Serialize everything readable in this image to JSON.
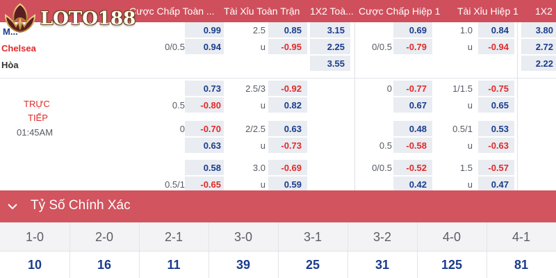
{
  "brand": {
    "name": "LOTO188",
    "colors": {
      "header": "#cf4f5c",
      "score_bar": "#d1545f",
      "odd_blue": "#1a3c8c",
      "odd_red": "#e02a2a"
    }
  },
  "header": {
    "cols": [
      "Cược Chấp Toàn ...",
      "Tài Xỉu Toàn Trận",
      "1X2 Toà...",
      "Cược Chấp Hiệp 1",
      "Tài Xỉu Hiệp 1",
      "1X2"
    ]
  },
  "match": {
    "home": "M...",
    "away": "Chelsea",
    "draw": "Hòa",
    "status": [
      "TRỰC",
      "TIẾP"
    ],
    "time": "01:45AM"
  },
  "rows": [
    {
      "ft_hdp": {
        "line_top": "",
        "top": "0.99",
        "line_bot": "0/0.5",
        "bot": "0.94"
      },
      "ft_ou": {
        "line_top": "2.5",
        "top": "0.85",
        "line_bot": "u",
        "bot": "-0.95"
      },
      "ft_1x2": [
        "3.15",
        "2.25",
        "3.55"
      ],
      "h1_hdp": {
        "line_top": "",
        "top": "0.69",
        "line_bot": "0/0.5",
        "bot": "-0.79"
      },
      "h1_ou": {
        "line_top": "1.0",
        "top": "0.84",
        "line_bot": "u",
        "bot": "-0.94"
      },
      "h1_1x2": [
        "3.80",
        "2.72",
        "2.22"
      ]
    },
    {
      "ft_hdp": {
        "line_top": "",
        "top": "0.73",
        "line_bot": "0.5",
        "bot": "-0.80"
      },
      "ft_ou": {
        "line_top": "2.5/3",
        "top": "-0.92",
        "line_bot": "u",
        "bot": "0.82"
      },
      "h1_hdp": {
        "line_top": "0",
        "top": "-0.77",
        "line_bot": "",
        "bot": "0.67"
      },
      "h1_ou": {
        "line_top": "1/1.5",
        "top": "-0.75",
        "line_bot": "u",
        "bot": "0.65"
      }
    },
    {
      "ft_hdp": {
        "line_top": "0",
        "top": "-0.70",
        "line_bot": "",
        "bot": "0.63"
      },
      "ft_ou": {
        "line_top": "2/2.5",
        "top": "0.63",
        "line_bot": "u",
        "bot": "-0.73"
      },
      "h1_hdp": {
        "line_top": "",
        "top": "0.48",
        "line_bot": "0.5",
        "bot": "-0.58"
      },
      "h1_ou": {
        "line_top": "0.5/1",
        "top": "0.53",
        "line_bot": "u",
        "bot": "-0.63"
      }
    },
    {
      "ft_hdp": {
        "line_top": "",
        "top": "0.58",
        "line_bot": "0.5/1",
        "bot": "-0.65"
      },
      "ft_ou": {
        "line_top": "3.0",
        "top": "-0.69",
        "line_bot": "u",
        "bot": "0.59"
      },
      "h1_hdp": {
        "line_top": "0/0.5",
        "top": "-0.52",
        "line_bot": "",
        "bot": "0.42"
      },
      "h1_ou": {
        "line_top": "1.5",
        "top": "-0.57",
        "line_bot": "u",
        "bot": "0.47"
      }
    }
  ],
  "correct_score": {
    "title": "Tỷ Số Chính Xác",
    "scores": [
      "1-0",
      "2-0",
      "2-1",
      "3-0",
      "3-1",
      "3-2",
      "4-0",
      "4-1"
    ],
    "odds": [
      "10",
      "16",
      "11",
      "39",
      "25",
      "31",
      "125",
      "81"
    ]
  }
}
